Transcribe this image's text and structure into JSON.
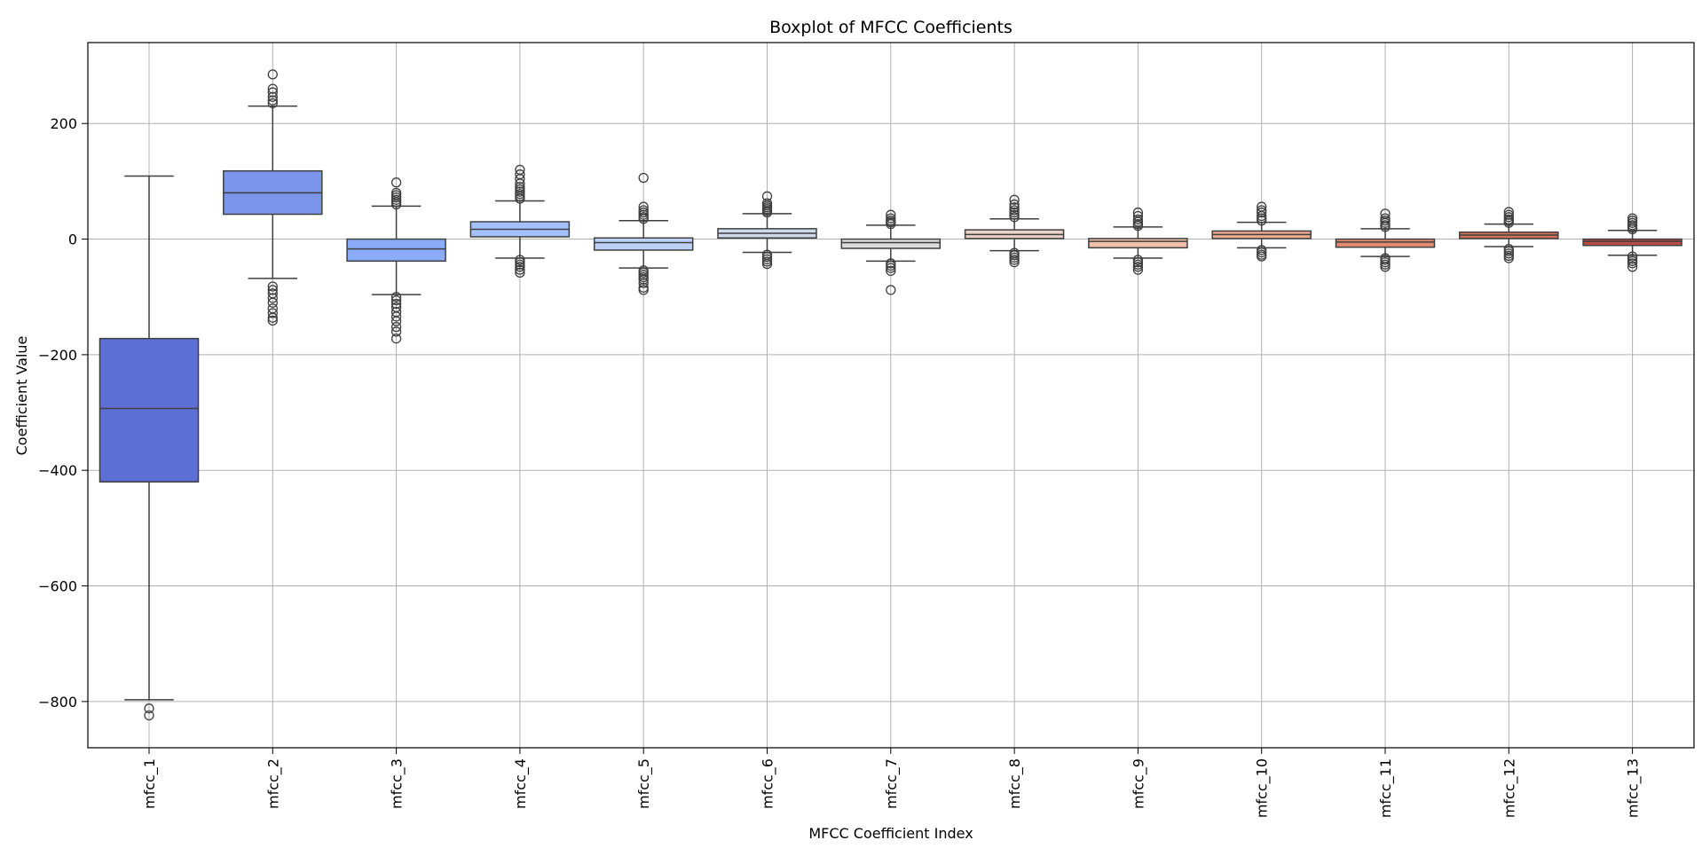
{
  "chart_data": {
    "type": "box",
    "title": "Boxplot of MFCC Coefficients",
    "xlabel": "MFCC Coefficient Index",
    "ylabel": "Coefficient Value",
    "ylim": [
      -880,
      340
    ],
    "yticks": [
      -800,
      -600,
      -400,
      -200,
      0,
      200
    ],
    "ytick_labels": [
      "−800",
      "−600",
      "−400",
      "−200",
      "0",
      "200"
    ],
    "grid": true,
    "categories": [
      "mfcc_1",
      "mfcc_2",
      "mfcc_3",
      "mfcc_4",
      "mfcc_5",
      "mfcc_6",
      "mfcc_7",
      "mfcc_8",
      "mfcc_9",
      "mfcc_10",
      "mfcc_11",
      "mfcc_12",
      "mfcc_13"
    ],
    "boxes": [
      {
        "q1": -420,
        "median": -293,
        "q3": -172,
        "whisker_low": -797,
        "whisker_high": 109,
        "outliers": [
          -812,
          -824
        ],
        "color": "#5b6fd5"
      },
      {
        "q1": 43,
        "median": 80,
        "q3": 118,
        "whisker_low": -68,
        "whisker_high": 230,
        "outliers": [
          -82,
          -88,
          -94,
          -102,
          -110,
          -120,
          -128,
          -136,
          -141,
          235,
          240,
          246,
          254,
          260,
          285
        ],
        "color": "#7a95ea"
      },
      {
        "q1": -38,
        "median": -17,
        "q3": 0,
        "whisker_low": -96,
        "whisker_high": 57,
        "outliers": [
          -100,
          -106,
          -112,
          -118,
          -126,
          -134,
          -142,
          -152,
          -160,
          -172,
          60,
          64,
          68,
          72,
          76,
          80,
          98
        ],
        "color": "#8aabf8"
      },
      {
        "q1": 4,
        "median": 17,
        "q3": 30,
        "whisker_low": -33,
        "whisker_high": 66,
        "outliers": [
          -36,
          -40,
          -44,
          -48,
          -53,
          -58,
          70,
          74,
          78,
          82,
          86,
          90,
          96,
          104,
          112,
          120
        ],
        "color": "#a4c0fe"
      },
      {
        "q1": -19,
        "median": -6,
        "q3": 2,
        "whisker_low": -50,
        "whisker_high": 32,
        "outliers": [
          -54,
          -58,
          -62,
          -66,
          -70,
          -76,
          -84,
          -88,
          35,
          38,
          42,
          46,
          50,
          56,
          106
        ],
        "color": "#bbd1f8"
      },
      {
        "q1": 2,
        "median": 10,
        "q3": 18,
        "whisker_low": -23,
        "whisker_high": 44,
        "outliers": [
          -27,
          -31,
          -35,
          -39,
          -43,
          46,
          49,
          52,
          55,
          58,
          62,
          74
        ],
        "color": "#cfd9ea"
      },
      {
        "q1": -16,
        "median": -6,
        "q3": 0,
        "whisker_low": -38,
        "whisker_high": 24,
        "outliers": [
          -42,
          -46,
          -50,
          -55,
          -88,
          26,
          29,
          32,
          36,
          42
        ],
        "color": "#dcdcdc"
      },
      {
        "q1": 1,
        "median": 8,
        "q3": 16,
        "whisker_low": -20,
        "whisker_high": 35,
        "outliers": [
          -24,
          -28,
          -32,
          -36,
          -40,
          38,
          42,
          46,
          50,
          55,
          60,
          68
        ],
        "color": "#ead3c6"
      },
      {
        "q1": -15,
        "median": -4,
        "q3": 1,
        "whisker_low": -33,
        "whisker_high": 21,
        "outliers": [
          -36,
          -40,
          -44,
          -48,
          -53,
          23,
          26,
          30,
          34,
          40,
          46
        ],
        "color": "#f1c0a8"
      },
      {
        "q1": 1,
        "median": 8,
        "q3": 14,
        "whisker_low": -15,
        "whisker_high": 29,
        "outliers": [
          -19,
          -23,
          -27,
          -30,
          32,
          36,
          40,
          46,
          50,
          56
        ],
        "color": "#eeaa8e"
      },
      {
        "q1": -14,
        "median": -5,
        "q3": 0,
        "whisker_low": -30,
        "whisker_high": 18,
        "outliers": [
          -33,
          -36,
          -40,
          -44,
          -48,
          21,
          24,
          28,
          32,
          36,
          44
        ],
        "color": "#e28b70"
      },
      {
        "q1": 1,
        "median": 7,
        "q3": 12,
        "whisker_low": -13,
        "whisker_high": 26,
        "outliers": [
          -17,
          -21,
          -25,
          -29,
          -33,
          28,
          31,
          34,
          38,
          42,
          47
        ],
        "color": "#d2705a"
      },
      {
        "q1": -11,
        "median": -4,
        "q3": 0,
        "whisker_low": -28,
        "whisker_high": 15,
        "outliers": [
          -30,
          -34,
          -38,
          -42,
          -48,
          17,
          20,
          24,
          28,
          32,
          36
        ],
        "color": "#bc4a44"
      }
    ]
  }
}
